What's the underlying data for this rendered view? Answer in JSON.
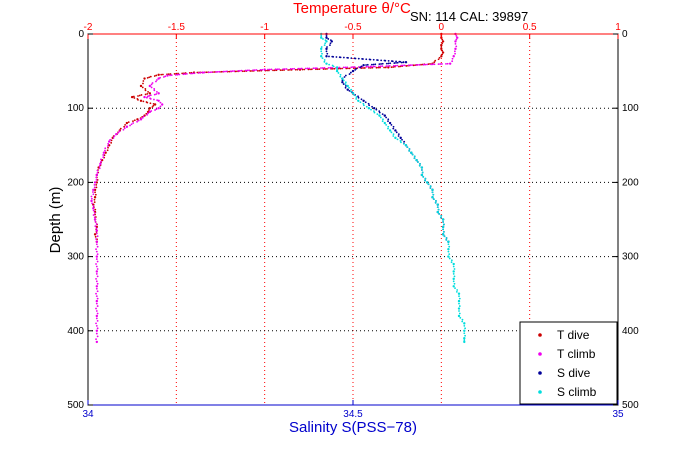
{
  "header": {
    "sn_cal": "SN: 114  CAL: 39897"
  },
  "chart_data": {
    "type": "scatter",
    "title": "Temperature θ/°C",
    "xlabel": "Salinity S(PSS−78)",
    "ylabel": "Depth (m)",
    "x_bottom": {
      "label": "Salinity S(PSS−78)",
      "lim": [
        34,
        35
      ],
      "ticks": [
        34,
        34.5,
        35
      ],
      "tick_labels": [
        "34",
        "34.5",
        "35"
      ],
      "color": "#0000cc"
    },
    "x_top": {
      "label": "Temperature θ/°C",
      "lim": [
        -2,
        1
      ],
      "ticks": [
        -2,
        -1.5,
        -1,
        -0.5,
        0,
        0.5,
        1
      ],
      "tick_labels": [
        "-2",
        "-1.5",
        "-1",
        "-0.5",
        "0",
        "0.5",
        "1"
      ],
      "color": "#ff0000"
    },
    "y": {
      "lim": [
        0,
        500
      ],
      "reversed": true,
      "ticks": [
        0,
        100,
        200,
        300,
        400,
        500
      ],
      "tick_labels": [
        "0",
        "100",
        "200",
        "300",
        "400",
        "500"
      ]
    },
    "grid": "dotted",
    "legend": "bottom-right",
    "series": [
      {
        "name": "T dive",
        "axis": "temperature",
        "color": "#cc0000",
        "points": [
          [
            0.0,
            0
          ],
          [
            0.0,
            5
          ],
          [
            0.01,
            10
          ],
          [
            0.0,
            15
          ],
          [
            0.0,
            20
          ],
          [
            0.01,
            25
          ],
          [
            0.0,
            30
          ],
          [
            -0.05,
            40
          ],
          [
            -0.3,
            45
          ],
          [
            -0.8,
            48
          ],
          [
            -1.4,
            52
          ],
          [
            -1.6,
            55
          ],
          [
            -1.68,
            60
          ],
          [
            -1.7,
            70
          ],
          [
            -1.65,
            80
          ],
          [
            -1.75,
            85
          ],
          [
            -1.7,
            90
          ],
          [
            -1.62,
            95
          ],
          [
            -1.65,
            100
          ],
          [
            -1.66,
            105
          ],
          [
            -1.68,
            110
          ],
          [
            -1.72,
            115
          ],
          [
            -1.78,
            120
          ],
          [
            -1.82,
            130
          ],
          [
            -1.86,
            140
          ],
          [
            -1.88,
            150
          ],
          [
            -1.9,
            160
          ],
          [
            -1.92,
            170
          ],
          [
            -1.94,
            180
          ],
          [
            -1.95,
            190
          ],
          [
            -1.95,
            200
          ],
          [
            -1.96,
            210
          ],
          [
            -1.96,
            220
          ],
          [
            -1.97,
            230
          ],
          [
            -1.96,
            240
          ],
          [
            -1.96,
            250
          ],
          [
            -1.95,
            260
          ],
          [
            -1.96,
            270
          ],
          [
            -1.95,
            280
          ]
        ]
      },
      {
        "name": "T climb",
        "axis": "temperature",
        "color": "#ee00ee",
        "points": [
          [
            0.08,
            0
          ],
          [
            0.09,
            5
          ],
          [
            0.08,
            10
          ],
          [
            0.08,
            20
          ],
          [
            0.07,
            30
          ],
          [
            0.05,
            40
          ],
          [
            -0.4,
            44
          ],
          [
            -1.0,
            48
          ],
          [
            -1.35,
            52
          ],
          [
            -1.55,
            56
          ],
          [
            -1.6,
            60
          ],
          [
            -1.65,
            70
          ],
          [
            -1.6,
            80
          ],
          [
            -1.68,
            85
          ],
          [
            -1.6,
            90
          ],
          [
            -1.58,
            95
          ],
          [
            -1.6,
            100
          ],
          [
            -1.65,
            105
          ],
          [
            -1.7,
            115
          ],
          [
            -1.78,
            125
          ],
          [
            -1.84,
            135
          ],
          [
            -1.88,
            145
          ],
          [
            -1.91,
            160
          ],
          [
            -1.93,
            175
          ],
          [
            -1.95,
            190
          ],
          [
            -1.96,
            200
          ],
          [
            -1.97,
            210
          ],
          [
            -1.98,
            225
          ],
          [
            -1.97,
            235
          ],
          [
            -1.96,
            250
          ],
          [
            -1.95,
            265
          ],
          [
            -1.95,
            280
          ],
          [
            -1.95,
            300
          ],
          [
            -1.95,
            320
          ],
          [
            -1.95,
            340
          ],
          [
            -1.95,
            360
          ],
          [
            -1.95,
            380
          ],
          [
            -1.95,
            400
          ],
          [
            -1.95,
            415
          ]
        ]
      },
      {
        "name": "S dive",
        "axis": "salinity",
        "color": "#000099",
        "points": [
          [
            34.45,
            0
          ],
          [
            34.45,
            5
          ],
          [
            34.46,
            10
          ],
          [
            34.45,
            20
          ],
          [
            34.45,
            30
          ],
          [
            34.6,
            38
          ],
          [
            34.52,
            42
          ],
          [
            34.5,
            50
          ],
          [
            34.48,
            60
          ],
          [
            34.48,
            65
          ],
          [
            34.49,
            75
          ],
          [
            34.5,
            80
          ],
          [
            34.52,
            90
          ],
          [
            34.54,
            100
          ],
          [
            34.56,
            110
          ],
          [
            34.57,
            120
          ],
          [
            34.58,
            130
          ],
          [
            34.59,
            140
          ],
          [
            34.6,
            150
          ],
          [
            34.61,
            160
          ],
          [
            34.62,
            170
          ],
          [
            34.63,
            180
          ],
          [
            34.63,
            190
          ],
          [
            34.64,
            200
          ],
          [
            34.65,
            210
          ],
          [
            34.65,
            220
          ],
          [
            34.66,
            230
          ],
          [
            34.66,
            240
          ],
          [
            34.67,
            250
          ],
          [
            34.67,
            260
          ],
          [
            34.67,
            270
          ],
          [
            34.68,
            280
          ]
        ]
      },
      {
        "name": "S climb",
        "axis": "salinity",
        "color": "#00dddd",
        "points": [
          [
            34.44,
            0
          ],
          [
            34.44,
            5
          ],
          [
            34.45,
            10
          ],
          [
            34.44,
            20
          ],
          [
            34.44,
            30
          ],
          [
            34.45,
            40
          ],
          [
            34.47,
            45
          ],
          [
            34.47,
            50
          ],
          [
            34.48,
            60
          ],
          [
            34.49,
            70
          ],
          [
            34.5,
            80
          ],
          [
            34.51,
            90
          ],
          [
            34.53,
            100
          ],
          [
            34.55,
            110
          ],
          [
            34.56,
            120
          ],
          [
            34.57,
            130
          ],
          [
            34.58,
            140
          ],
          [
            34.6,
            150
          ],
          [
            34.61,
            160
          ],
          [
            34.62,
            170
          ],
          [
            34.63,
            180
          ],
          [
            34.63,
            190
          ],
          [
            34.64,
            200
          ],
          [
            34.65,
            210
          ],
          [
            34.65,
            220
          ],
          [
            34.66,
            230
          ],
          [
            34.66,
            240
          ],
          [
            34.67,
            250
          ],
          [
            34.67,
            260
          ],
          [
            34.67,
            270
          ],
          [
            34.68,
            280
          ],
          [
            34.68,
            290
          ],
          [
            34.68,
            300
          ],
          [
            34.69,
            310
          ],
          [
            34.69,
            320
          ],
          [
            34.69,
            330
          ],
          [
            34.69,
            340
          ],
          [
            34.7,
            350
          ],
          [
            34.7,
            360
          ],
          [
            34.7,
            370
          ],
          [
            34.7,
            380
          ],
          [
            34.71,
            390
          ],
          [
            34.71,
            400
          ],
          [
            34.71,
            410
          ],
          [
            34.71,
            415
          ]
        ]
      }
    ]
  }
}
